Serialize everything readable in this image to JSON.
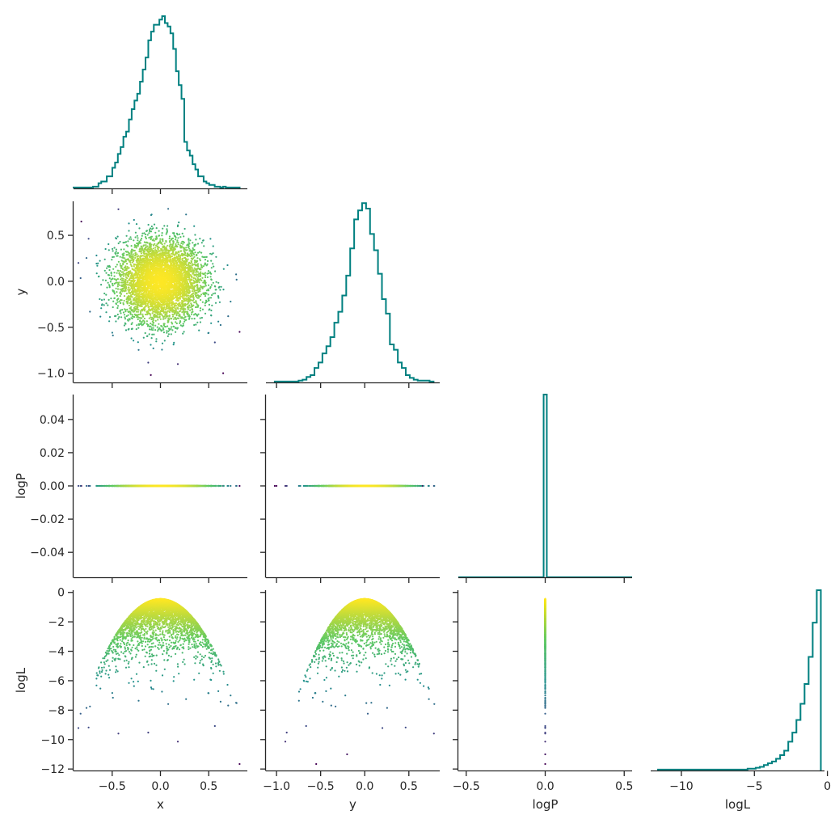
{
  "colors": {
    "histogram": "#008080",
    "axis": "#262626",
    "colormap": [
      "#440154",
      "#3b528b",
      "#21918c",
      "#5ec962",
      "#fde725"
    ]
  },
  "chart_data": {
    "type": "pairplot",
    "title": "",
    "variables": [
      "x",
      "y",
      "logP",
      "logL"
    ],
    "corner": true,
    "grid": false,
    "point_color_by": "logL",
    "scatter_points": 5000,
    "panels": [
      {
        "id": "hist-x",
        "type": "histogram",
        "row": 0,
        "col": 0,
        "variable": "x",
        "xlim": [
          -0.9,
          0.9
        ],
        "ylim": [
          0,
          1.0
        ],
        "bin_edges_range": [
          -0.9,
          0.82
        ],
        "bins": 60,
        "counts": [
          0.005,
          0.005,
          0.005,
          0.005,
          0.005,
          0.005,
          0.005,
          0.01,
          0.01,
          0.03,
          0.04,
          0.04,
          0.07,
          0.07,
          0.12,
          0.15,
          0.2,
          0.24,
          0.3,
          0.33,
          0.4,
          0.46,
          0.51,
          0.55,
          0.62,
          0.69,
          0.76,
          0.86,
          0.91,
          0.95,
          0.95,
          0.98,
          1.0,
          0.96,
          0.94,
          0.9,
          0.81,
          0.68,
          0.6,
          0.52,
          0.27,
          0.22,
          0.19,
          0.14,
          0.11,
          0.07,
          0.07,
          0.04,
          0.03,
          0.02,
          0.02,
          0.01,
          0.01,
          0.005,
          0.01,
          0.005,
          0.005,
          0.005,
          0.005,
          0.005
        ],
        "xticks": [
          -0.5,
          0.0,
          0.5
        ],
        "xtick_labels": [],
        "yticks": [],
        "ytick_labels": [],
        "xlabel": "",
        "ylabel": ""
      },
      {
        "id": "scatter-x-y",
        "type": "scatter",
        "row": 1,
        "col": 0,
        "xvar": "x",
        "yvar": "y",
        "xlim": [
          -0.9,
          0.9
        ],
        "ylim": [
          -1.1,
          0.87
        ],
        "xticks": [
          -0.5,
          0.0,
          0.5
        ],
        "xtick_labels": [],
        "yticks": [
          -1.0,
          -0.5,
          0.0,
          0.5
        ],
        "ytick_labels": [
          "−1.0",
          "−0.5",
          "0.0",
          "0.5"
        ],
        "xlabel": "",
        "ylabel": "y"
      },
      {
        "id": "hist-y",
        "type": "histogram",
        "row": 1,
        "col": 1,
        "variable": "y",
        "xlim": [
          -1.12,
          0.85
        ],
        "ylim": [
          0,
          1.0
        ],
        "bin_edges_range": [
          -1.02,
          0.78
        ],
        "bins": 40,
        "counts": [
          0.005,
          0.005,
          0.005,
          0.005,
          0.005,
          0.005,
          0.01,
          0.015,
          0.03,
          0.04,
          0.08,
          0.11,
          0.16,
          0.2,
          0.25,
          0.33,
          0.39,
          0.48,
          0.59,
          0.74,
          0.9,
          0.95,
          0.99,
          0.96,
          0.82,
          0.73,
          0.6,
          0.46,
          0.38,
          0.21,
          0.18,
          0.11,
          0.08,
          0.04,
          0.025,
          0.015,
          0.01,
          0.01,
          0.01,
          0.005
        ],
        "xticks": [
          -1.0,
          -0.5,
          0.0,
          0.5
        ],
        "xtick_labels": [],
        "yticks": [],
        "ytick_labels": [],
        "xlabel": "",
        "ylabel": ""
      },
      {
        "id": "scatter-x-logP",
        "type": "scatter",
        "row": 2,
        "col": 0,
        "xvar": "x",
        "yvar": "logP",
        "xlim": [
          -0.9,
          0.9
        ],
        "ylim": [
          -0.055,
          0.055
        ],
        "xticks": [
          -0.5,
          0.0,
          0.5
        ],
        "xtick_labels": [],
        "yticks": [
          -0.04,
          -0.02,
          0.0,
          0.02,
          0.04
        ],
        "ytick_labels": [
          "−0.04",
          "−0.02",
          "0.00",
          "0.02",
          "0.04"
        ],
        "xlabel": "",
        "ylabel": "logP"
      },
      {
        "id": "scatter-y-logP",
        "type": "scatter",
        "row": 2,
        "col": 1,
        "xvar": "y",
        "yvar": "logP",
        "xlim": [
          -1.12,
          0.85
        ],
        "ylim": [
          -0.055,
          0.055
        ],
        "xticks": [
          -1.0,
          -0.5,
          0.0,
          0.5
        ],
        "xtick_labels": [],
        "yticks": [
          -0.04,
          -0.02,
          0.0,
          0.02,
          0.04
        ],
        "ytick_labels": [],
        "xlabel": "",
        "ylabel": ""
      },
      {
        "id": "hist-logP",
        "type": "histogram",
        "row": 2,
        "col": 2,
        "variable": "logP",
        "xlim": [
          -0.55,
          0.55
        ],
        "ylim": [
          0,
          1.0
        ],
        "bin_edges_range": [
          -0.01,
          0.01
        ],
        "bins": 1,
        "counts": [
          1.0
        ],
        "baseline_range": [
          -0.55,
          0.55
        ],
        "xticks": [
          -0.5,
          0.0,
          0.5
        ],
        "xtick_labels": [],
        "yticks": [],
        "ytick_labels": [],
        "xlabel": "",
        "ylabel": ""
      },
      {
        "id": "scatter-x-logL",
        "type": "scatter",
        "row": 3,
        "col": 0,
        "xvar": "x",
        "yvar": "logL",
        "xlim": [
          -0.9,
          0.9
        ],
        "ylim": [
          -12.1,
          0.15
        ],
        "xticks": [
          -0.5,
          0.0,
          0.5
        ],
        "xtick_labels": [
          "−0.5",
          "0.0",
          "0.5"
        ],
        "yticks": [
          -12,
          -10,
          -8,
          -6,
          -4,
          -2,
          0
        ],
        "ytick_labels": [
          "−12",
          "−10",
          "−8",
          "−6",
          "−4",
          "−2",
          "0"
        ],
        "xlabel": "x",
        "ylabel": "logL"
      },
      {
        "id": "scatter-y-logL",
        "type": "scatter",
        "row": 3,
        "col": 1,
        "xvar": "y",
        "yvar": "logL",
        "xlim": [
          -1.12,
          0.85
        ],
        "ylim": [
          -12.1,
          0.15
        ],
        "xticks": [
          -1.0,
          -0.5,
          0.0,
          0.5
        ],
        "xtick_labels": [
          "−1.0",
          "−0.5",
          "0.0",
          "0.5"
        ],
        "yticks": [
          -12,
          -10,
          -8,
          -6,
          -4,
          -2,
          0
        ],
        "ytick_labels": [],
        "xlabel": "y",
        "ylabel": ""
      },
      {
        "id": "scatter-logP-logL",
        "type": "scatter",
        "row": 3,
        "col": 2,
        "xvar": "logP",
        "yvar": "logL",
        "xlim": [
          -0.55,
          0.55
        ],
        "ylim": [
          -12.1,
          0.15
        ],
        "xticks": [
          -0.5,
          0.0,
          0.5
        ],
        "xtick_labels": [
          "−0.5",
          "0.0",
          "0.5"
        ],
        "yticks": [
          -12,
          -10,
          -8,
          -6,
          -4,
          -2,
          0
        ],
        "ytick_labels": [],
        "xlabel": "logP",
        "ylabel": ""
      },
      {
        "id": "hist-logL",
        "type": "histogram",
        "row": 3,
        "col": 3,
        "variable": "logL",
        "xlim": [
          -12.1,
          -0.2
        ],
        "ylim": [
          0,
          1.0
        ],
        "bin_edges_range": [
          -11.6,
          -0.45
        ],
        "bins": 40,
        "counts": [
          0.005,
          0.005,
          0.005,
          0.005,
          0.005,
          0.005,
          0.005,
          0.005,
          0.005,
          0.005,
          0.005,
          0.005,
          0.005,
          0.005,
          0.005,
          0.005,
          0.005,
          0.005,
          0.005,
          0.005,
          0.005,
          0.005,
          0.01,
          0.01,
          0.015,
          0.02,
          0.03,
          0.04,
          0.05,
          0.065,
          0.085,
          0.11,
          0.16,
          0.21,
          0.28,
          0.37,
          0.48,
          0.63,
          0.82,
          1.0
        ],
        "xticks": [
          -10,
          -5,
          0
        ],
        "xtick_labels": [
          "−10",
          "−5",
          "0"
        ],
        "yticks": [],
        "ytick_labels": [],
        "xlabel": "logL",
        "ylabel": ""
      }
    ]
  }
}
